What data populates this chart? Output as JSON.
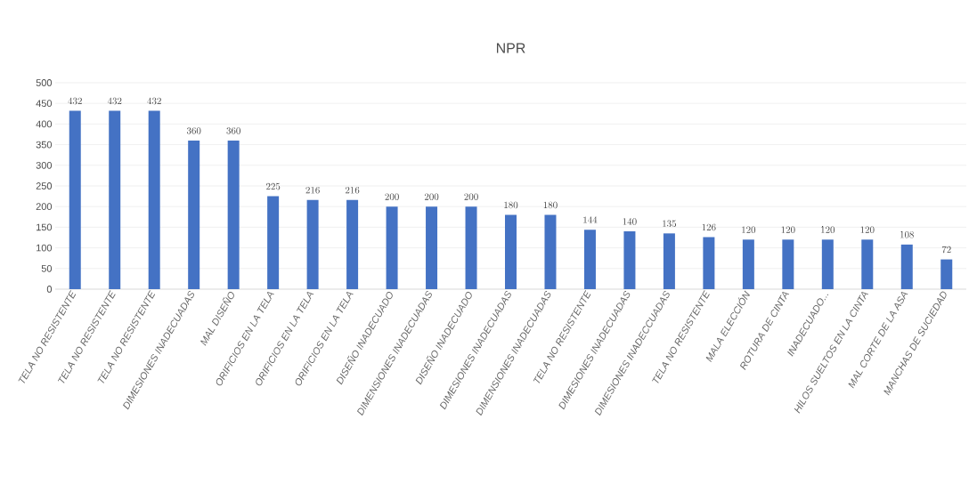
{
  "chart_data": {
    "type": "bar",
    "title": "NPR",
    "categories": [
      "TELA NO RESISTENTE",
      "TELA NO RESISTENTE",
      "TELA NO RESISTENTE",
      "DIMESIONES INADECUADAS",
      "MAL DISEÑO",
      "ORIFICIOS EN LA TELA",
      "ORIFICIOS EN LA TELA",
      "ORIFICIOS EN LA TELA",
      "DISEÑO INADECUADO",
      "DIMENSIONES INADECUADAS",
      "DISEÑO INADECUADO",
      "DIMESIONES INADECUADAS",
      "DIMENSIONES INADECUADAS",
      "TELA NO RESISTENTE",
      "DIMESIONES INADECUADAS",
      "DIMESIONES INADECCUADAS",
      "TELA NO RESISTENTE",
      "MALA ELECCIÓN",
      "ROTURA DE CINTA",
      "INADECUADO...",
      "HILOS SUELTOS EN LA CINTA",
      "MAL CORTE DE LA ASA",
      "MANCHAS DE SUCIEDAD"
    ],
    "values": [
      432,
      432,
      432,
      360,
      360,
      225,
      216,
      216,
      200,
      200,
      200,
      180,
      180,
      144,
      140,
      135,
      126,
      120,
      120,
      120,
      120,
      108,
      72
    ],
    "color": "#4472c4",
    "ylim": [
      0,
      500
    ],
    "yticks": [
      0,
      50,
      100,
      150,
      200,
      250,
      300,
      350,
      400,
      450,
      500
    ],
    "grid": "y",
    "data_labels": true
  }
}
